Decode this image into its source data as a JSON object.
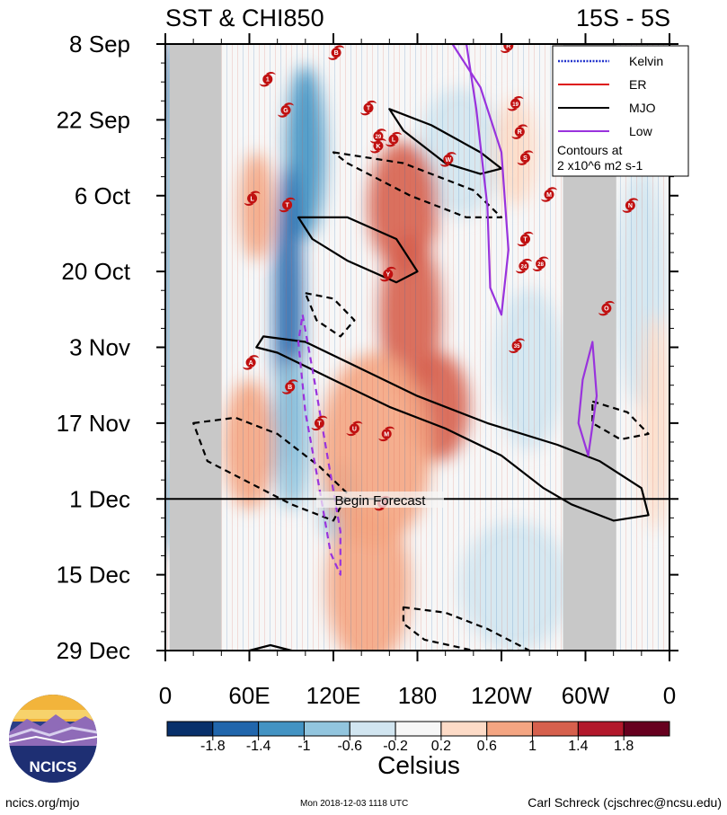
{
  "chart_data": {
    "type": "heatmap",
    "title_left": "SST & CHI850",
    "title_right": "15S - 5S",
    "x_ticks": [
      "0",
      "60E",
      "120E",
      "180",
      "120W",
      "60W",
      "0"
    ],
    "x_tick_values": [
      0,
      60,
      120,
      180,
      240,
      300,
      360
    ],
    "x_range": [
      0,
      360
    ],
    "y_ticks": [
      "8 Sep",
      "22 Sep",
      "6 Oct",
      "20 Oct",
      "3 Nov",
      "17 Nov",
      "1 Dec",
      "15 Dec",
      "29 Dec"
    ],
    "y_tick_values": [
      0,
      14,
      28,
      42,
      56,
      70,
      84,
      98,
      112
    ],
    "y_range": [
      0,
      112
    ],
    "colorbar": {
      "label": "Celsius",
      "tick_labels": [
        "-1.8",
        "-1.4",
        "-1",
        "-0.6",
        "-0.2",
        "0.2",
        "0.6",
        "1",
        "1.4",
        "1.8"
      ],
      "colors": [
        "#08306b",
        "#2166ac",
        "#4393c3",
        "#92c5de",
        "#d1e5f0",
        "#f7f7f7",
        "#fddbc7",
        "#f4a582",
        "#d6604d",
        "#b2182b",
        "#67001f"
      ]
    },
    "legend": [
      {
        "name": "Kelvin",
        "color": "#2233cc",
        "style": "dotted"
      },
      {
        "name": "ER",
        "color": "#dd1111",
        "style": "solid"
      },
      {
        "name": "MJO",
        "color": "#000000",
        "style": "solid"
      },
      {
        "name": "Low",
        "color": "#9933dd",
        "style": "solid"
      }
    ],
    "contour_note": [
      "Contours at",
      "2 x10^6 m2 s-1"
    ],
    "forecast_label": "Begin Forecast",
    "forecast_day": 84,
    "land_bands": [
      [
        3,
        40
      ],
      [
        284,
        322
      ]
    ],
    "field_blobs": [
      {
        "lon": 5,
        "day": 10,
        "rlon": 5,
        "rday": 12,
        "v": -1.8
      },
      {
        "lon": 7,
        "day": 40,
        "rlon": 6,
        "rday": 40,
        "v": -1.2
      },
      {
        "lon": 7,
        "day": 85,
        "rlon": 5,
        "rday": 10,
        "v": -1.3
      },
      {
        "lon": 100,
        "day": 20,
        "rlon": 14,
        "rday": 16,
        "v": -1.2
      },
      {
        "lon": 88,
        "day": 50,
        "rlon": 10,
        "rday": 28,
        "v": -1.5
      },
      {
        "lon": 90,
        "day": 72,
        "rlon": 14,
        "rday": 14,
        "v": -1.0
      },
      {
        "lon": 125,
        "day": 85,
        "rlon": 14,
        "rday": 8,
        "v": -0.7
      },
      {
        "lon": 210,
        "day": 20,
        "rlon": 30,
        "rday": 12,
        "v": -0.6
      },
      {
        "lon": 260,
        "day": 60,
        "rlon": 25,
        "rday": 15,
        "v": -0.5
      },
      {
        "lon": 250,
        "day": 100,
        "rlon": 40,
        "rday": 12,
        "v": -0.4
      },
      {
        "lon": 340,
        "day": 45,
        "rlon": 18,
        "rday": 22,
        "v": -0.6
      },
      {
        "lon": 170,
        "day": 30,
        "rlon": 25,
        "rday": 12,
        "v": 1.0
      },
      {
        "lon": 175,
        "day": 50,
        "rlon": 22,
        "rday": 15,
        "v": 1.2
      },
      {
        "lon": 195,
        "day": 67,
        "rlon": 22,
        "rday": 10,
        "v": 1.1
      },
      {
        "lon": 150,
        "day": 75,
        "rlon": 40,
        "rday": 18,
        "v": 0.9
      },
      {
        "lon": 60,
        "day": 74,
        "rlon": 18,
        "rday": 12,
        "v": 0.8
      },
      {
        "lon": 145,
        "day": 100,
        "rlon": 30,
        "rday": 15,
        "v": 0.7
      },
      {
        "lon": 65,
        "day": 30,
        "rlon": 12,
        "rday": 10,
        "v": 0.6
      },
      {
        "lon": 250,
        "day": 20,
        "rlon": 15,
        "rday": 10,
        "v": 0.5
      },
      {
        "lon": 350,
        "day": 70,
        "rlon": 10,
        "rday": 20,
        "v": 0.5
      }
    ],
    "contours": [
      {
        "kind": "MJO",
        "dash": false,
        "points": [
          [
            65,
            56
          ],
          [
            80,
            57
          ],
          [
            120,
            62
          ],
          [
            160,
            67
          ],
          [
            200,
            71
          ],
          [
            240,
            76
          ],
          [
            270,
            82
          ],
          [
            290,
            85
          ],
          [
            320,
            88
          ],
          [
            345,
            87
          ],
          [
            340,
            82
          ],
          [
            310,
            77
          ],
          [
            280,
            74
          ],
          [
            230,
            70
          ],
          [
            180,
            65
          ],
          [
            140,
            60
          ],
          [
            100,
            55
          ],
          [
            70,
            54
          ]
        ]
      },
      {
        "kind": "MJO",
        "dash": true,
        "points": [
          [
            20,
            70
          ],
          [
            50,
            69
          ],
          [
            80,
            72
          ],
          [
            110,
            78
          ],
          [
            130,
            83
          ],
          [
            120,
            88
          ],
          [
            90,
            85
          ],
          [
            60,
            81
          ],
          [
            30,
            77
          ]
        ]
      },
      {
        "kind": "MJO",
        "dash": false,
        "points": [
          [
            160,
            12
          ],
          [
            190,
            15
          ],
          [
            225,
            20
          ],
          [
            240,
            23
          ],
          [
            225,
            24
          ],
          [
            200,
            22
          ],
          [
            170,
            16
          ]
        ]
      },
      {
        "kind": "MJO",
        "dash": true,
        "points": [
          [
            120,
            20
          ],
          [
            170,
            22
          ],
          [
            220,
            27
          ],
          [
            240,
            32
          ],
          [
            215,
            32
          ],
          [
            175,
            28
          ],
          [
            130,
            22
          ]
        ]
      },
      {
        "kind": "MJO",
        "dash": false,
        "points": [
          [
            95,
            32
          ],
          [
            130,
            32
          ],
          [
            165,
            36
          ],
          [
            180,
            42
          ],
          [
            165,
            44
          ],
          [
            130,
            40
          ],
          [
            105,
            36
          ]
        ]
      },
      {
        "kind": "MJO",
        "dash": true,
        "points": [
          [
            100,
            46
          ],
          [
            120,
            47
          ],
          [
            135,
            51
          ],
          [
            125,
            54
          ],
          [
            108,
            51
          ]
        ]
      },
      {
        "kind": "MJO",
        "dash": true,
        "points": [
          [
            305,
            66
          ],
          [
            330,
            68
          ],
          [
            345,
            72
          ],
          [
            325,
            73
          ],
          [
            305,
            70
          ]
        ]
      },
      {
        "kind": "MJO",
        "dash": true,
        "points": [
          [
            170,
            104
          ],
          [
            200,
            105
          ],
          [
            230,
            108
          ],
          [
            260,
            112
          ],
          [
            220,
            112
          ],
          [
            185,
            110
          ],
          [
            170,
            107
          ]
        ]
      },
      {
        "kind": "MJO",
        "dash": false,
        "points": [
          [
            60,
            112
          ],
          [
            75,
            111
          ],
          [
            90,
            112
          ]
        ]
      },
      {
        "kind": "Low",
        "dash": false,
        "points": [
          [
            205,
            0
          ],
          [
            225,
            8
          ],
          [
            240,
            20
          ],
          [
            245,
            38
          ],
          [
            240,
            50
          ],
          [
            232,
            45
          ],
          [
            230,
            30
          ],
          [
            222,
            12
          ],
          [
            215,
            0
          ]
        ]
      },
      {
        "kind": "Low",
        "dash": false,
        "points": [
          [
            298,
            62
          ],
          [
            305,
            55
          ],
          [
            308,
            65
          ],
          [
            302,
            76
          ],
          [
            295,
            70
          ]
        ]
      },
      {
        "kind": "Low",
        "dash": true,
        "points": [
          [
            98,
            50
          ],
          [
            105,
            60
          ],
          [
            115,
            75
          ],
          [
            125,
            90
          ],
          [
            125,
            98
          ],
          [
            118,
            94
          ],
          [
            110,
            82
          ],
          [
            100,
            68
          ],
          [
            95,
            55
          ]
        ]
      }
    ],
    "storms": [
      {
        "label": "B",
        "lon": 122,
        "day": 1.6
      },
      {
        "label": "R",
        "lon": 245,
        "day": 0.3
      },
      {
        "label": "1",
        "lon": 73,
        "day": 6.5
      },
      {
        "label": "G",
        "lon": 86,
        "day": 12.2
      },
      {
        "label": "T",
        "lon": 145,
        "day": 11.8
      },
      {
        "label": "19",
        "lon": 250,
        "day": 11.0
      },
      {
        "label": "29",
        "lon": 152,
        "day": 17.0
      },
      {
        "label": "L",
        "lon": 163,
        "day": 17.6
      },
      {
        "label": "K",
        "lon": 152,
        "day": 18.8
      },
      {
        "label": "R",
        "lon": 253,
        "day": 16.2
      },
      {
        "label": "W",
        "lon": 202,
        "day": 21.3
      },
      {
        "label": "S",
        "lon": 257,
        "day": 21.0
      },
      {
        "label": "L",
        "lon": 62,
        "day": 28.5
      },
      {
        "label": "T",
        "lon": 87,
        "day": 29.7
      },
      {
        "label": "M",
        "lon": 274,
        "day": 27.8
      },
      {
        "label": "N",
        "lon": 332,
        "day": 29.8
      },
      {
        "label": "T",
        "lon": 257,
        "day": 36.0
      },
      {
        "label": "24",
        "lon": 256,
        "day": 41.0
      },
      {
        "label": "28",
        "lon": 268,
        "day": 40.6
      },
      {
        "label": "Y",
        "lon": 159,
        "day": 42.5
      },
      {
        "label": "O",
        "lon": 315,
        "day": 48.8
      },
      {
        "label": "35",
        "lon": 251,
        "day": 55.7
      },
      {
        "label": "A",
        "lon": 61,
        "day": 58.8
      },
      {
        "label": "B",
        "lon": 89,
        "day": 63.3
      },
      {
        "label": "T",
        "lon": 110,
        "day": 70.0
      },
      {
        "label": "U",
        "lon": 135,
        "day": 71.0
      },
      {
        "label": "M",
        "lon": 158,
        "day": 72.0
      },
      {
        "label": "C",
        "lon": 155,
        "day": 84.8
      }
    ]
  },
  "footer": {
    "url": "ncics.org/mjo",
    "timestamp": "Mon 2018-12-03 1118 UTC",
    "author": "Carl Schreck (cjschrec@ncsu.edu)",
    "logo_text": "NCICS"
  }
}
